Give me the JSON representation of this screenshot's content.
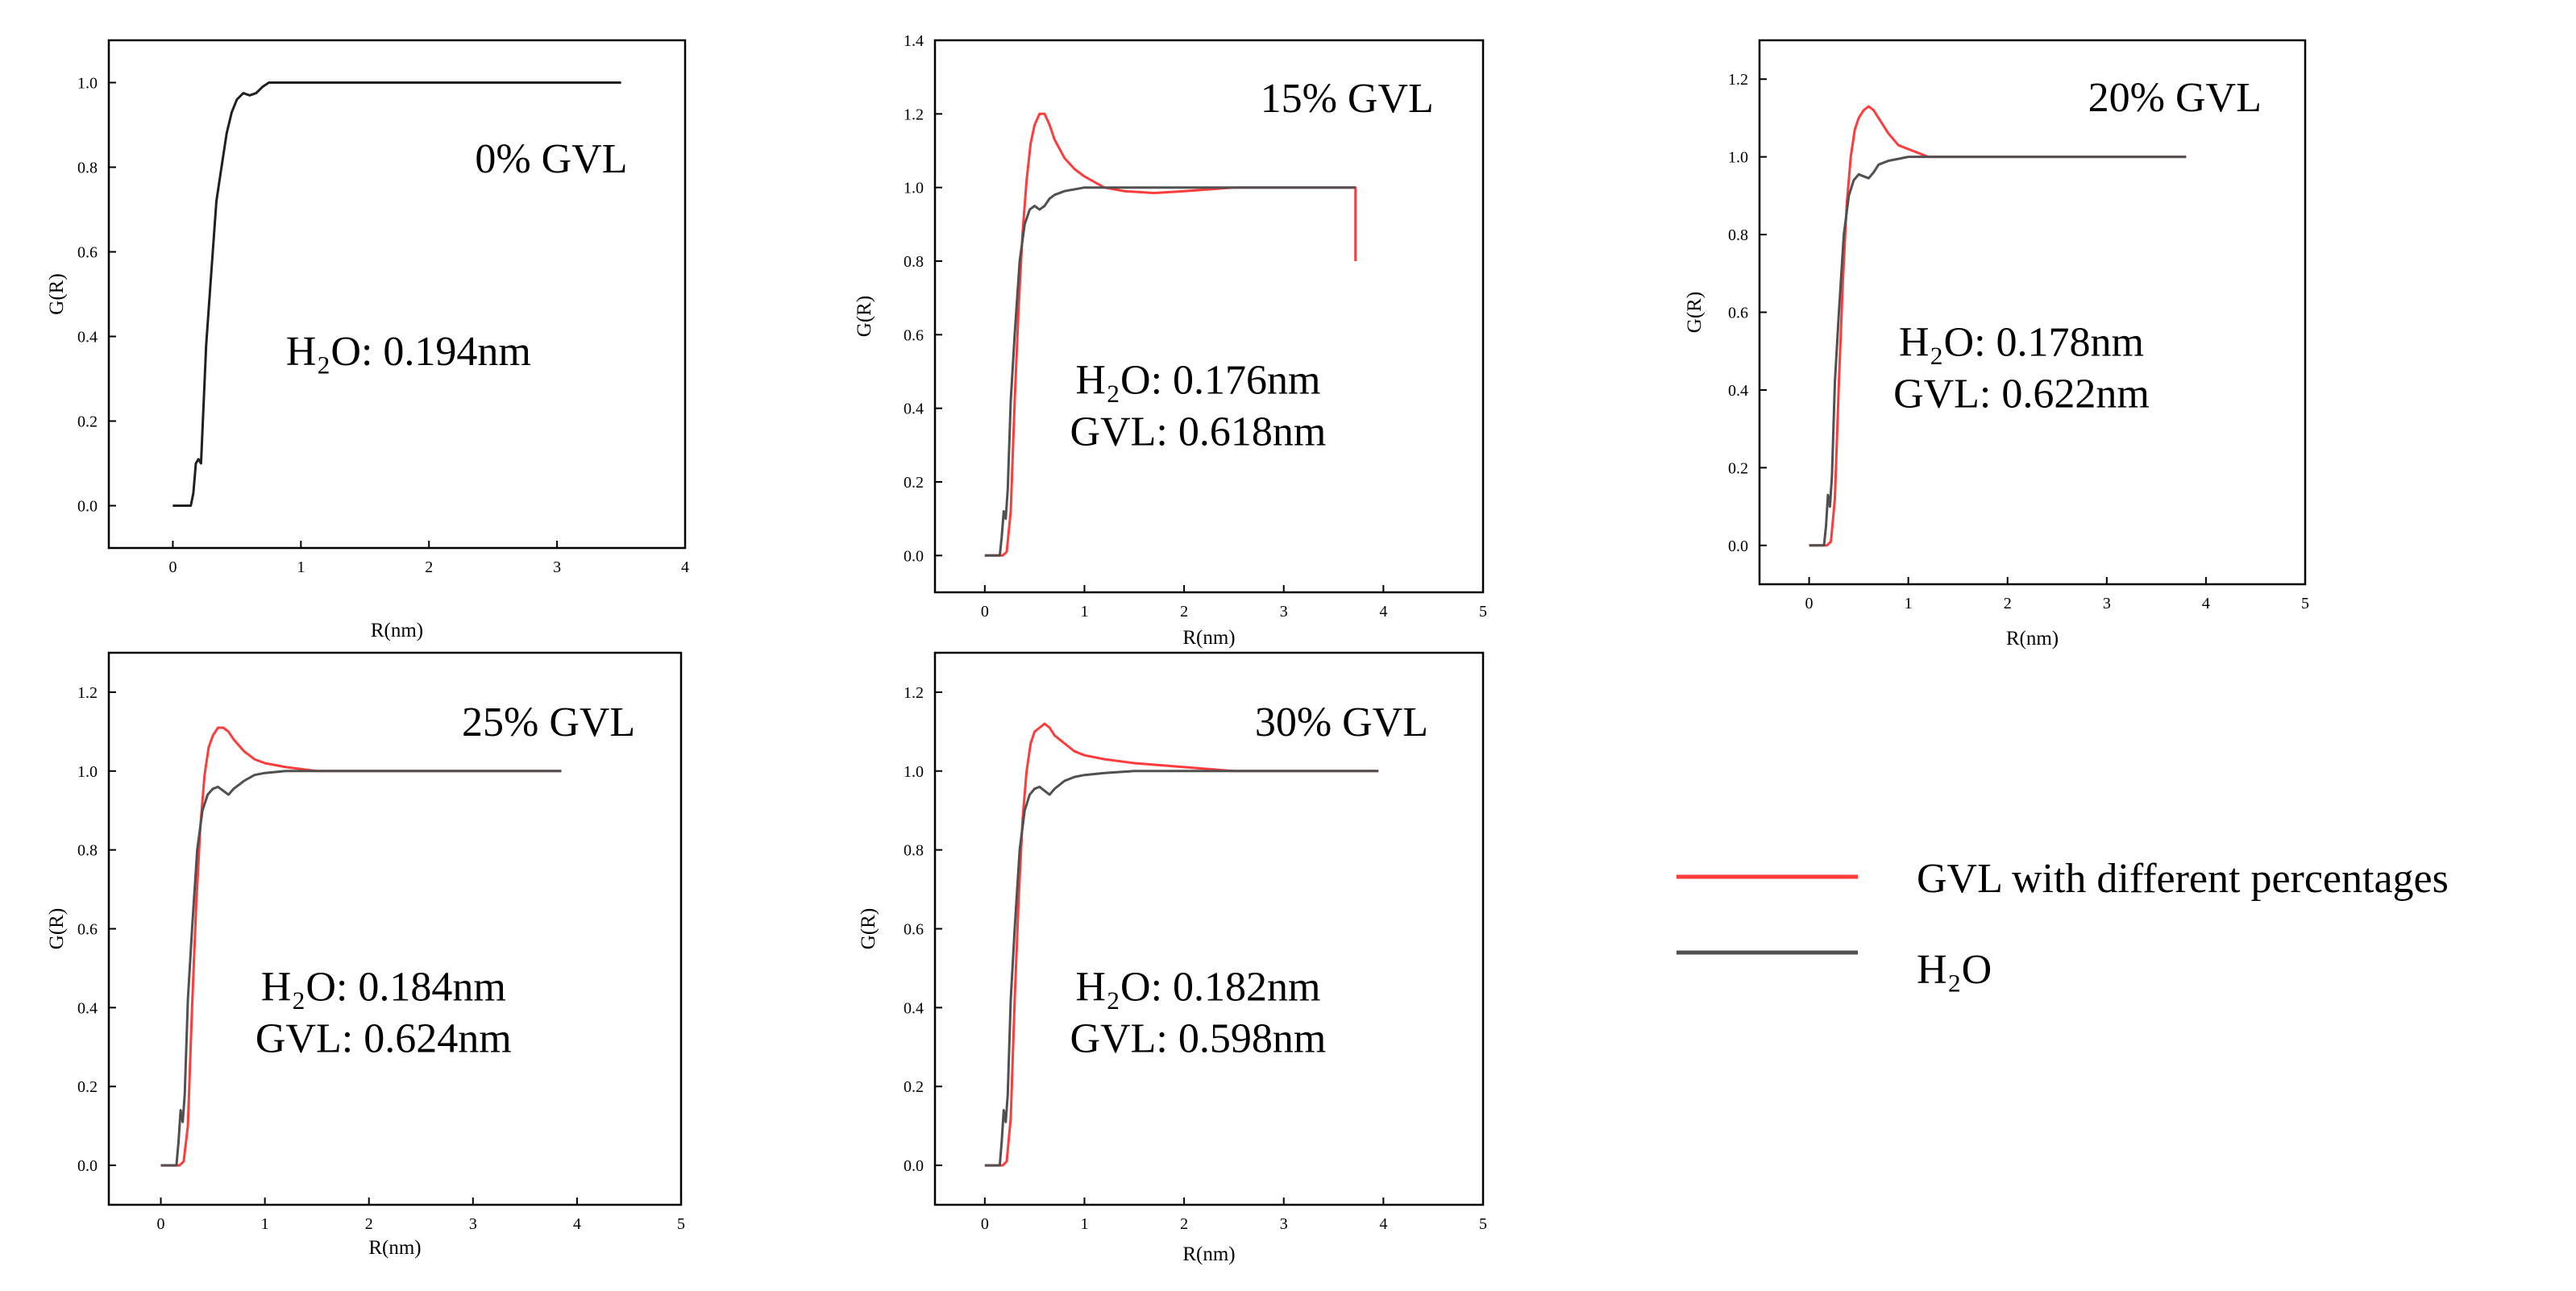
{
  "figure": {
    "background": "#ffffff"
  },
  "legend": {
    "items": [
      {
        "label": "GVL with different percentages",
        "color": "#ff3b3b"
      },
      {
        "label": "H₂O",
        "color": "#505050"
      }
    ]
  },
  "chart_data": [
    {
      "id": "gvl0",
      "type": "line",
      "title": "0% GVL",
      "xlabel": "R(nm)",
      "ylabel": "G(R)",
      "xlim": [
        -0.5,
        4
      ],
      "ylim": [
        -0.1,
        1.1
      ],
      "xticks": [
        0,
        1,
        2,
        3,
        4
      ],
      "yticks": [
        0.0,
        0.2,
        0.4,
        0.6,
        0.8,
        1.0
      ],
      "annotations": [
        "H₂O: 0.194nm"
      ],
      "series": [
        {
          "name": "H₂O",
          "color": "#202020",
          "x": [
            0,
            0.14,
            0.16,
            0.18,
            0.2,
            0.22,
            0.26,
            0.3,
            0.34,
            0.38,
            0.42,
            0.46,
            0.5,
            0.55,
            0.6,
            0.65,
            0.7,
            0.75,
            0.8,
            0.9,
            1.0,
            1.5,
            2.0,
            2.5,
            3.0,
            3.5
          ],
          "y": [
            0,
            0,
            0.03,
            0.1,
            0.11,
            0.1,
            0.38,
            0.55,
            0.72,
            0.8,
            0.88,
            0.93,
            0.96,
            0.975,
            0.97,
            0.975,
            0.99,
            1.0,
            1.0,
            1.0,
            1.0,
            1.0,
            1.0,
            1.0,
            1.0,
            1.0
          ]
        }
      ]
    },
    {
      "id": "gvl15",
      "type": "line",
      "title": "15% GVL",
      "xlabel": "R(nm)",
      "ylabel": "G(R)",
      "xlim": [
        -0.5,
        5
      ],
      "ylim": [
        -0.1,
        1.4
      ],
      "xticks": [
        0,
        1,
        2,
        3,
        4,
        5
      ],
      "yticks": [
        0.0,
        0.2,
        0.4,
        0.6,
        0.8,
        1.0,
        1.2,
        1.4
      ],
      "annotations": [
        "H₂O: 0.176nm",
        "GVL: 0.618nm"
      ],
      "series": [
        {
          "name": "GVL with different percentages",
          "color": "#ff3b3b",
          "x": [
            0,
            0.18,
            0.22,
            0.26,
            0.3,
            0.34,
            0.38,
            0.42,
            0.46,
            0.5,
            0.55,
            0.6,
            0.65,
            0.7,
            0.8,
            0.9,
            1.0,
            1.2,
            1.4,
            1.7,
            2.0,
            2.5,
            3.0,
            3.5,
            3.72,
            3.72
          ],
          "y": [
            0,
            0,
            0.01,
            0.12,
            0.42,
            0.68,
            0.88,
            1.02,
            1.12,
            1.17,
            1.2,
            1.2,
            1.17,
            1.13,
            1.08,
            1.05,
            1.03,
            1.0,
            0.99,
            0.985,
            0.99,
            1.0,
            1.0,
            1.0,
            1.0,
            0.8
          ]
        },
        {
          "name": "H₂O",
          "color": "#505050",
          "x": [
            0,
            0.15,
            0.17,
            0.19,
            0.21,
            0.23,
            0.26,
            0.3,
            0.35,
            0.4,
            0.45,
            0.5,
            0.55,
            0.6,
            0.65,
            0.7,
            0.8,
            1.0,
            1.5,
            2.0,
            2.5,
            3.0,
            3.5,
            3.72
          ],
          "y": [
            0,
            0,
            0.05,
            0.12,
            0.1,
            0.18,
            0.42,
            0.6,
            0.8,
            0.9,
            0.94,
            0.95,
            0.94,
            0.95,
            0.97,
            0.98,
            0.99,
            1.0,
            1.0,
            1.0,
            1.0,
            1.0,
            1.0,
            1.0
          ]
        }
      ]
    },
    {
      "id": "gvl20",
      "type": "line",
      "title": "20% GVL",
      "xlabel": "R(nm)",
      "ylabel": "G(R)",
      "xlim": [
        -0.5,
        5
      ],
      "ylim": [
        -0.1,
        1.3
      ],
      "xticks": [
        0,
        1,
        2,
        3,
        4,
        5
      ],
      "yticks": [
        0.0,
        0.2,
        0.4,
        0.6,
        0.8,
        1.0,
        1.2
      ],
      "annotations": [
        "H₂O: 0.178nm",
        "GVL: 0.622nm"
      ],
      "series": [
        {
          "name": "GVL with different percentages",
          "color": "#ff3b3b",
          "x": [
            0,
            0.18,
            0.22,
            0.26,
            0.3,
            0.34,
            0.38,
            0.42,
            0.46,
            0.5,
            0.55,
            0.6,
            0.65,
            0.7,
            0.8,
            0.9,
            1.0,
            1.2,
            1.5,
            2.0,
            2.5,
            3.0,
            3.5,
            3.8
          ],
          "y": [
            0,
            0,
            0.01,
            0.12,
            0.42,
            0.68,
            0.88,
            1.0,
            1.07,
            1.1,
            1.12,
            1.13,
            1.12,
            1.1,
            1.06,
            1.03,
            1.02,
            1.0,
            1.0,
            1.0,
            1.0,
            1.0,
            1.0,
            1.0
          ]
        },
        {
          "name": "H₂O",
          "color": "#505050",
          "x": [
            0,
            0.15,
            0.17,
            0.19,
            0.21,
            0.23,
            0.26,
            0.3,
            0.35,
            0.4,
            0.45,
            0.5,
            0.55,
            0.6,
            0.65,
            0.7,
            0.8,
            0.9,
            1.0,
            1.2,
            1.5,
            2.0,
            2.5,
            3.0,
            3.5,
            3.8
          ],
          "y": [
            0,
            0,
            0.05,
            0.13,
            0.1,
            0.18,
            0.42,
            0.6,
            0.8,
            0.9,
            0.94,
            0.955,
            0.95,
            0.945,
            0.96,
            0.98,
            0.99,
            0.995,
            1.0,
            1.0,
            1.0,
            1.0,
            1.0,
            1.0,
            1.0,
            1.0
          ]
        }
      ]
    },
    {
      "id": "gvl25",
      "type": "line",
      "title": "25% GVL",
      "xlabel": "R(nm)",
      "ylabel": "G(R)",
      "xlim": [
        -0.5,
        5
      ],
      "ylim": [
        -0.1,
        1.3
      ],
      "xticks": [
        0,
        1,
        2,
        3,
        4,
        5
      ],
      "yticks": [
        0.0,
        0.2,
        0.4,
        0.6,
        0.8,
        1.0,
        1.2
      ],
      "annotations": [
        "H₂O: 0.184nm",
        "GVL: 0.624nm"
      ],
      "series": [
        {
          "name": "GVL with different percentages",
          "color": "#ff3b3b",
          "x": [
            0,
            0.18,
            0.22,
            0.26,
            0.3,
            0.34,
            0.38,
            0.42,
            0.46,
            0.5,
            0.55,
            0.6,
            0.65,
            0.7,
            0.8,
            0.9,
            1.0,
            1.2,
            1.5,
            2.0,
            2.5,
            3.0,
            3.5,
            3.85
          ],
          "y": [
            0,
            0,
            0.01,
            0.1,
            0.4,
            0.66,
            0.86,
            0.99,
            1.06,
            1.09,
            1.11,
            1.11,
            1.1,
            1.08,
            1.05,
            1.03,
            1.02,
            1.01,
            1.0,
            1.0,
            1.0,
            1.0,
            1.0,
            1.0
          ]
        },
        {
          "name": "H₂O",
          "color": "#505050",
          "x": [
            0,
            0.15,
            0.17,
            0.19,
            0.21,
            0.23,
            0.26,
            0.3,
            0.35,
            0.4,
            0.45,
            0.5,
            0.55,
            0.6,
            0.65,
            0.7,
            0.8,
            0.9,
            1.0,
            1.2,
            1.5,
            2.0,
            2.5,
            3.0,
            3.5,
            3.85
          ],
          "y": [
            0,
            0,
            0.06,
            0.14,
            0.11,
            0.18,
            0.42,
            0.6,
            0.8,
            0.9,
            0.94,
            0.955,
            0.96,
            0.95,
            0.94,
            0.955,
            0.975,
            0.99,
            0.995,
            1.0,
            1.0,
            1.0,
            1.0,
            1.0,
            1.0,
            1.0
          ]
        }
      ]
    },
    {
      "id": "gvl30",
      "type": "line",
      "title": "30% GVL",
      "xlabel": "R(nm)",
      "ylabel": "G(R)",
      "xlim": [
        -0.5,
        5
      ],
      "ylim": [
        -0.1,
        1.3
      ],
      "xticks": [
        0,
        1,
        2,
        3,
        4,
        5
      ],
      "yticks": [
        0.0,
        0.2,
        0.4,
        0.6,
        0.8,
        1.0,
        1.2
      ],
      "annotations": [
        "H₂O: 0.182nm",
        "GVL: 0.598nm"
      ],
      "series": [
        {
          "name": "GVL with different percentages",
          "color": "#ff3b3b",
          "x": [
            0,
            0.18,
            0.22,
            0.26,
            0.3,
            0.34,
            0.38,
            0.42,
            0.46,
            0.5,
            0.55,
            0.6,
            0.65,
            0.7,
            0.8,
            0.9,
            1.0,
            1.2,
            1.5,
            2.0,
            2.5,
            3.0,
            3.5,
            3.95
          ],
          "y": [
            0,
            0,
            0.01,
            0.12,
            0.42,
            0.68,
            0.88,
            1.0,
            1.07,
            1.1,
            1.11,
            1.12,
            1.11,
            1.09,
            1.07,
            1.05,
            1.04,
            1.03,
            1.02,
            1.01,
            1.0,
            1.0,
            1.0,
            1.0
          ]
        },
        {
          "name": "H₂O",
          "color": "#505050",
          "x": [
            0,
            0.15,
            0.17,
            0.19,
            0.21,
            0.23,
            0.26,
            0.3,
            0.35,
            0.4,
            0.45,
            0.5,
            0.55,
            0.6,
            0.65,
            0.7,
            0.8,
            0.9,
            1.0,
            1.2,
            1.5,
            2.0,
            2.5,
            3.0,
            3.5,
            3.95
          ],
          "y": [
            0,
            0,
            0.06,
            0.14,
            0.11,
            0.18,
            0.42,
            0.6,
            0.8,
            0.9,
            0.94,
            0.955,
            0.96,
            0.95,
            0.94,
            0.955,
            0.975,
            0.985,
            0.99,
            0.995,
            1.0,
            1.0,
            1.0,
            1.0,
            1.0,
            1.0
          ]
        }
      ]
    }
  ]
}
